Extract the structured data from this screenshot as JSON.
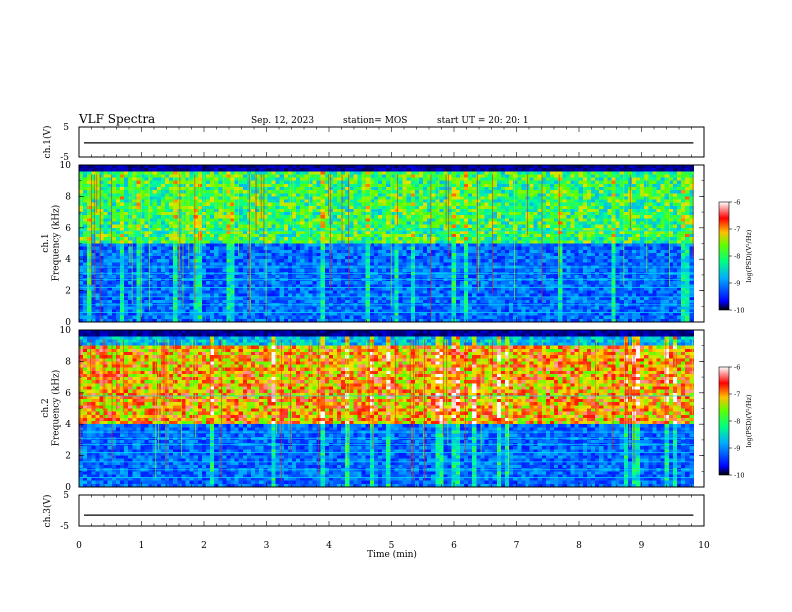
{
  "header": {
    "title": "VLF Spectra",
    "date": "Sep. 12, 2023",
    "station": "station= MOS",
    "start_ut": "start  UT  =   20: 20: 1"
  },
  "chart_data": [
    {
      "type": "line",
      "panel": "ch1-waveform",
      "ylabel": "ch.1(V)",
      "ylim": [
        -5,
        5
      ],
      "y_tick_labels": [
        "5",
        "-5"
      ],
      "x": [
        0,
        10
      ],
      "series": [
        {
          "values": [
            -0.3,
            -0.3
          ]
        }
      ]
    },
    {
      "type": "heatmap",
      "panel": "ch1-spectrogram",
      "ylabel": "ch.1\nFrequency (kHz)",
      "ylim": [
        0,
        10
      ],
      "y_ticks": [
        0,
        2,
        4,
        6,
        8,
        10
      ],
      "xlim": [
        0,
        10
      ],
      "data_end_min": 9.83,
      "colorbar": {
        "label": "log(PSD)(V²/Hz)",
        "range": [
          -10,
          -6
        ],
        "ticks": [
          "-6",
          "-7",
          "-8",
          "-9",
          "-10"
        ]
      },
      "dominant_band_khz": [
        5,
        9.5
      ],
      "dominant_level": -8
    },
    {
      "type": "heatmap",
      "panel": "ch2-spectrogram",
      "ylabel": "ch.2\nFrequency (kHz)",
      "ylim": [
        0,
        10
      ],
      "y_ticks": [
        0,
        2,
        4,
        6,
        8,
        10
      ],
      "xlim": [
        0,
        10
      ],
      "data_end_min": 9.83,
      "colorbar": {
        "label": "log(PSD)(V²/Hz)",
        "range": [
          -10,
          -6
        ],
        "ticks": [
          "-6",
          "-7",
          "-8",
          "-9",
          "-10"
        ]
      },
      "dominant_band_khz": [
        4,
        9
      ],
      "dominant_level": -6.8
    },
    {
      "type": "line",
      "panel": "ch3-waveform",
      "ylabel": "ch.3(V)",
      "ylim": [
        -5,
        5
      ],
      "y_tick_labels": [
        "5",
        "-5"
      ],
      "x": [
        0,
        10
      ],
      "series": [
        {
          "values": [
            -1.5,
            -1.5
          ]
        }
      ]
    }
  ],
  "x_axis": {
    "label": "Time  (min)",
    "ticks": [
      0,
      1,
      2,
      3,
      4,
      5,
      6,
      7,
      8,
      9,
      10
    ]
  },
  "colors": {
    "ink": "#000000",
    "colormap": [
      "#000080",
      "#0000ff",
      "#00a0ff",
      "#00ffff",
      "#00ff60",
      "#a0ff00",
      "#ffff00",
      "#ff8000",
      "#ff0000",
      "#ffffff"
    ]
  }
}
